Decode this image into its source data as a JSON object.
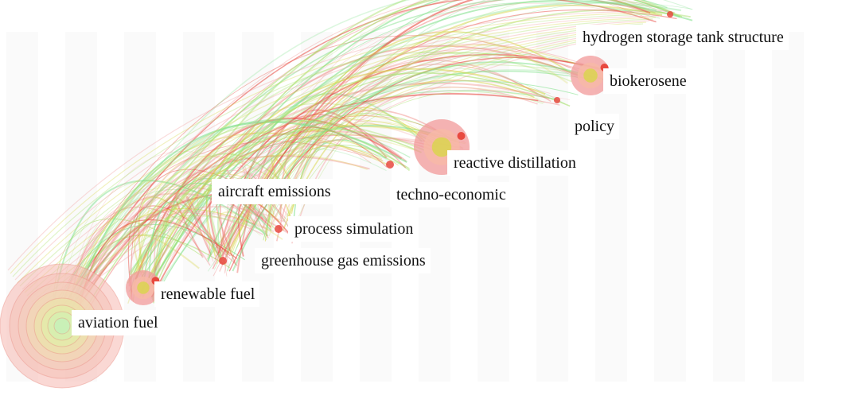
{
  "network": {
    "palette": {
      "red": "#e8493f",
      "pink": "#f19a9a",
      "yellow": "#d8d64a",
      "lime": "#a8e06a",
      "green": "#7fe08a"
    },
    "keywords": [
      {
        "id": "aviation-fuel",
        "label": "aviation fuel"
      },
      {
        "id": "renewable-fuel",
        "label": "renewable fuel"
      },
      {
        "id": "greenhouse-gas-emissions",
        "label": "greenhouse gas emissions"
      },
      {
        "id": "process-simulation",
        "label": "process simulation"
      },
      {
        "id": "aircraft-emissions",
        "label": "aircraft emissions"
      },
      {
        "id": "techno-economic",
        "label": "techno-economic"
      },
      {
        "id": "reactive-distillation",
        "label": "reactive distillation"
      },
      {
        "id": "policy",
        "label": "policy"
      },
      {
        "id": "biokerosene",
        "label": "biokerosene"
      },
      {
        "id": "hydrogen-storage-tank-structure",
        "label": "hydrogen storage tank structure"
      }
    ]
  }
}
